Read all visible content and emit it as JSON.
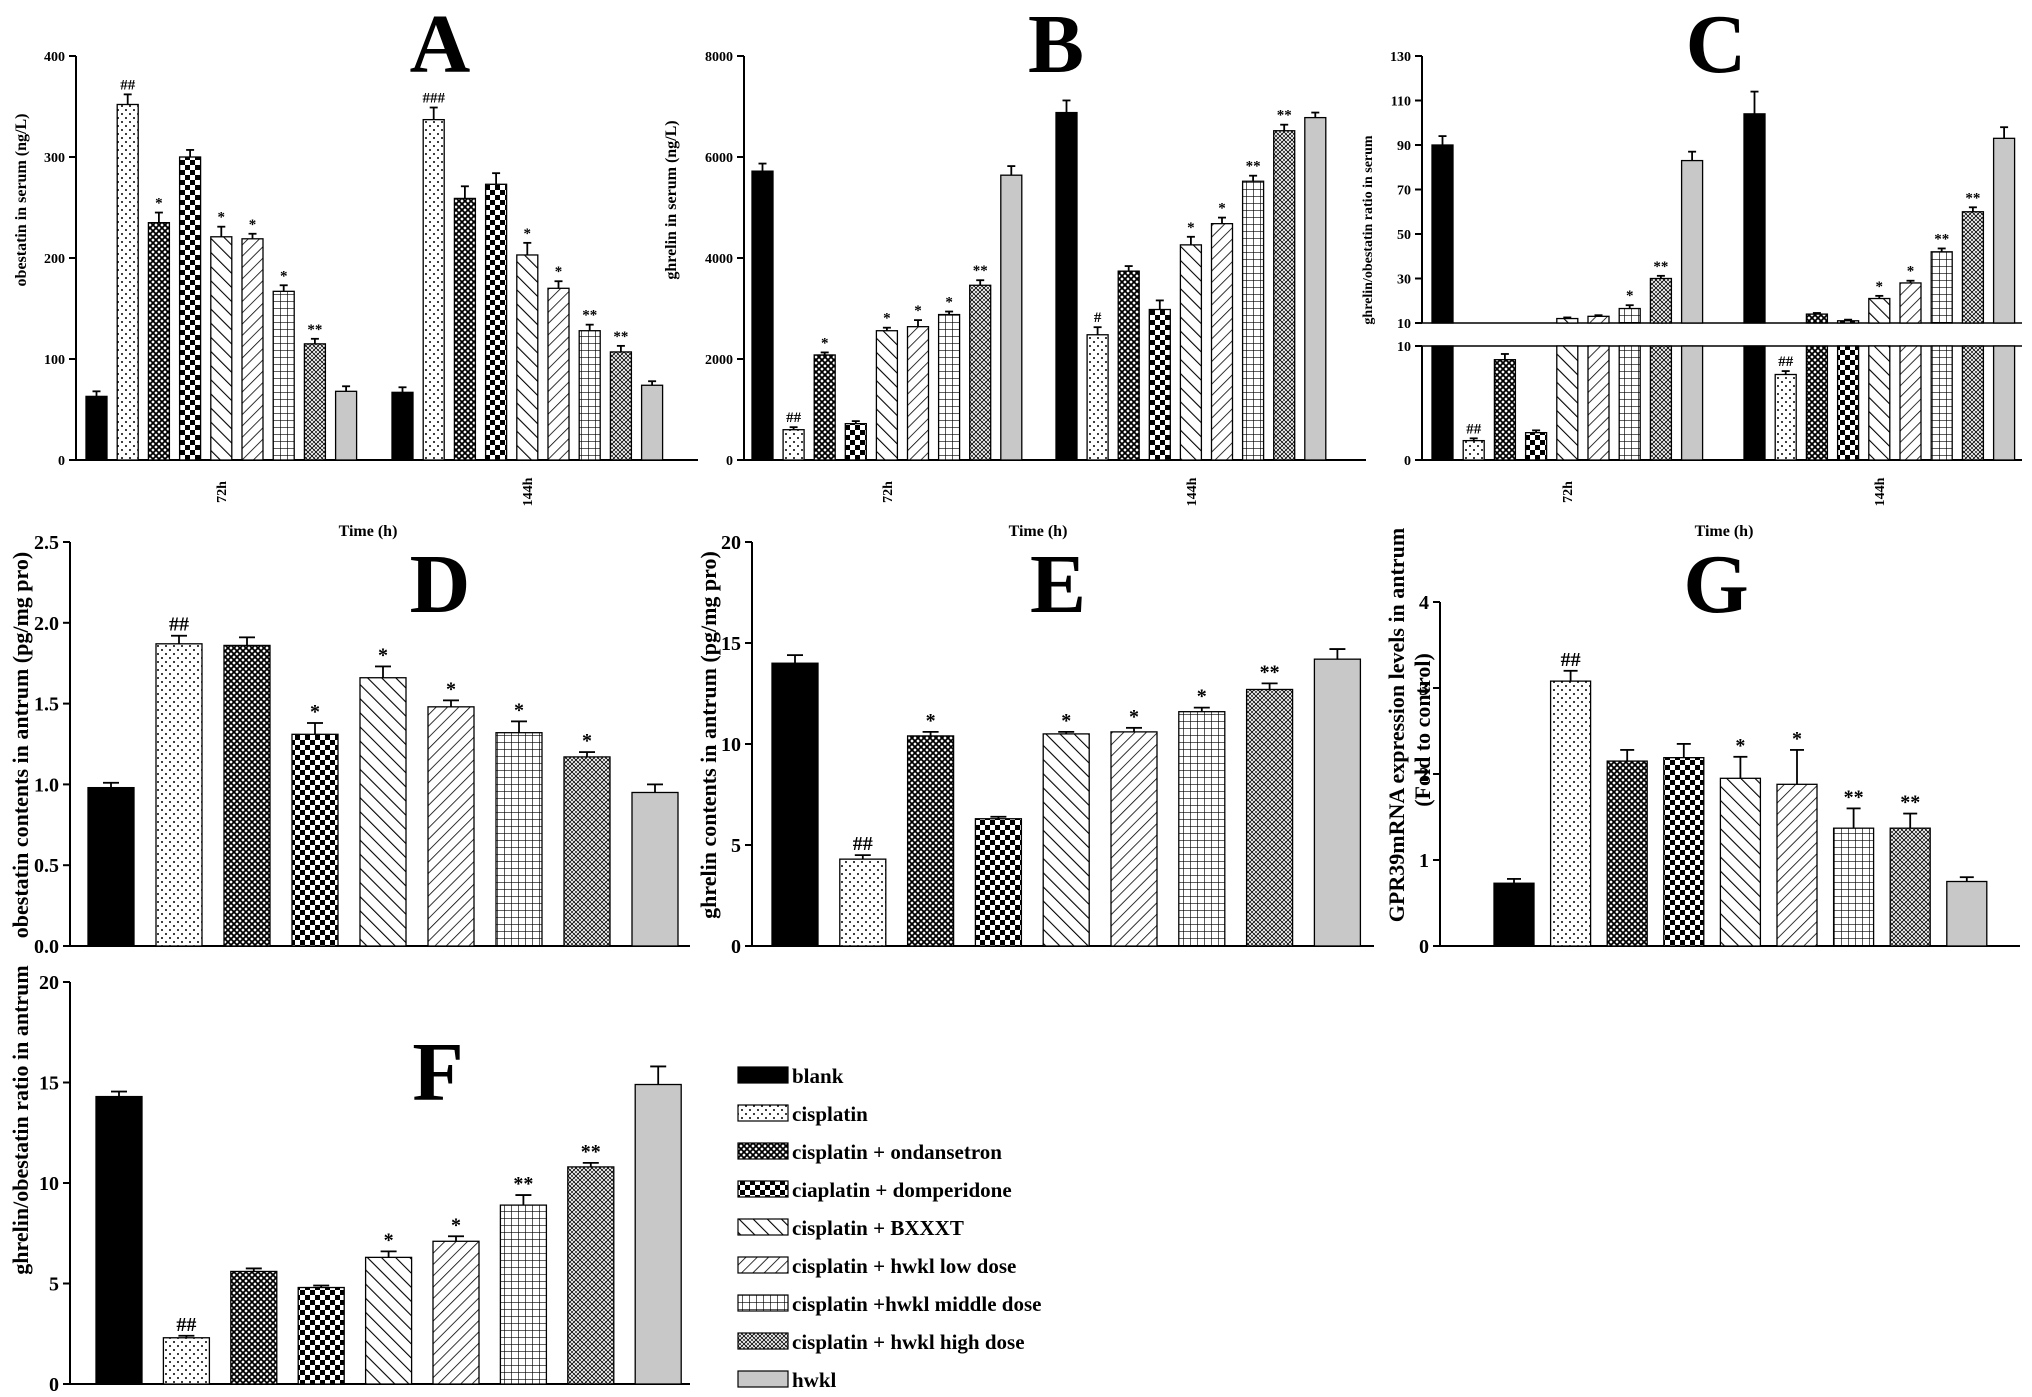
{
  "series_names": [
    "blank",
    "cisplatin",
    "cisplatin + ondansetron",
    "ciaplatin + domperidone",
    "cisplatin + BXXXT",
    "cisplatin + hwkl low dose",
    "cisplatin +hwkl middle dose",
    "cisplatin + hwkl high dose",
    "hwkl"
  ],
  "series_fills": [
    "black",
    "dots",
    "crosshatch",
    "checker",
    "diag-wide",
    "diag-back",
    "grid",
    "diamond",
    "gray"
  ],
  "colors": {
    "ink": "#000000",
    "hwkl_gray": "#c8c8c8",
    "background": "#ffffff"
  },
  "chart_data": [
    {
      "panel": "A",
      "type": "bar",
      "ylabel": "obestatin in serum (ng/L)",
      "xlabel": "Time (h)",
      "categories": [
        "72h",
        "144h"
      ],
      "ylim": [
        0,
        400
      ],
      "yticks": [
        0,
        100,
        200,
        300,
        400
      ],
      "values": [
        [
          63,
          352,
          235,
          300,
          221,
          219,
          167,
          115,
          68
        ],
        [
          67,
          337,
          259,
          273,
          203,
          170,
          128,
          107,
          74
        ]
      ],
      "errors": [
        [
          5,
          10,
          10,
          7,
          10,
          5,
          6,
          5,
          5
        ],
        [
          5,
          12,
          12,
          11,
          12,
          7,
          6,
          6,
          4
        ]
      ],
      "annotations": [
        [
          "",
          "##",
          "*",
          "",
          "*",
          "*",
          "*",
          "**",
          ""
        ],
        [
          "",
          "###",
          "",
          "",
          "*",
          "*",
          "**",
          "**",
          ""
        ]
      ],
      "legend": "bottom-right"
    },
    {
      "panel": "B",
      "type": "bar",
      "ylabel": "ghrelin in serum (ng/L)",
      "xlabel": "Time (h)",
      "categories": [
        "72h",
        "144h"
      ],
      "ylim": [
        0,
        8000
      ],
      "yticks": [
        0,
        2000,
        4000,
        6000,
        8000
      ],
      "values": [
        [
          5720,
          600,
          2080,
          720,
          2560,
          2640,
          2880,
          3460,
          5640
        ],
        [
          6880,
          2480,
          3740,
          2980,
          4260,
          4680,
          5520,
          6520,
          6780
        ]
      ],
      "errors": [
        [
          150,
          50,
          50,
          50,
          60,
          130,
          60,
          100,
          180
        ],
        [
          240,
          150,
          100,
          180,
          160,
          120,
          110,
          120,
          100
        ]
      ],
      "annotations": [
        [
          "",
          "##",
          "*",
          "",
          "*",
          "*",
          "*",
          "**",
          ""
        ],
        [
          "",
          "#",
          "",
          "",
          "*",
          "*",
          "**",
          "**",
          ""
        ]
      ]
    },
    {
      "panel": "C",
      "type": "bar",
      "axis_break": true,
      "ylabel": "ghrelin/obestatin ratio in serum",
      "xlabel": "Time (h)",
      "categories": [
        "72h",
        "144h"
      ],
      "ylim_lower": [
        0,
        10
      ],
      "ylim_upper": [
        10,
        130
      ],
      "yticks_lower": [
        0,
        10
      ],
      "yticks_upper": [
        10,
        30,
        50,
        70,
        90,
        110,
        130
      ],
      "values": [
        [
          90,
          1.7,
          8.8,
          2.4,
          12,
          13,
          16.5,
          30,
          83
        ],
        [
          104,
          7.5,
          14,
          11,
          21,
          28,
          42,
          60,
          93
        ]
      ],
      "errors": [
        [
          4,
          0.2,
          0.5,
          0.2,
          0.5,
          0.5,
          1.5,
          1.2,
          4
        ],
        [
          10,
          0.3,
          0.5,
          0.5,
          1.2,
          1,
          1.5,
          2,
          5
        ]
      ],
      "annotations": [
        [
          "",
          "##",
          "",
          "",
          "",
          "",
          "*",
          "**",
          ""
        ],
        [
          "",
          "##",
          "",
          "",
          "*",
          "*",
          "**",
          "**",
          ""
        ]
      ]
    },
    {
      "panel": "D",
      "type": "bar",
      "ylabel": "obestatin contents in antrum (pg/mg pro)",
      "ylim": [
        0,
        2.5
      ],
      "yticks": [
        "0.0",
        "0.5",
        "1.0",
        "1.5",
        "2.0",
        "2.5"
      ],
      "values": [
        0.98,
        1.87,
        1.86,
        1.31,
        1.66,
        1.48,
        1.32,
        1.17,
        0.95
      ],
      "errors": [
        0.03,
        0.05,
        0.05,
        0.07,
        0.07,
        0.04,
        0.07,
        0.03,
        0.05
      ],
      "annotations": [
        "",
        "##",
        "",
        "*",
        "*",
        "*",
        "*",
        "*",
        ""
      ]
    },
    {
      "panel": "E",
      "type": "bar",
      "ylabel": "ghrelin contents in antrum (pg/mg pro)",
      "ylim": [
        0,
        20
      ],
      "yticks": [
        "0",
        "5",
        "10",
        "15",
        "20"
      ],
      "values": [
        14.0,
        4.3,
        10.4,
        6.3,
        10.5,
        10.6,
        11.6,
        12.7,
        14.2
      ],
      "errors": [
        0.4,
        0.2,
        0.2,
        0.1,
        0.1,
        0.2,
        0.2,
        0.3,
        0.5
      ],
      "annotations": [
        "",
        "##",
        "*",
        "",
        "*",
        "*",
        "*",
        "**",
        ""
      ]
    },
    {
      "panel": "F",
      "type": "bar",
      "ylabel": "ghrelin/obestatin ratio in antrum",
      "ylim": [
        0,
        20
      ],
      "yticks": [
        "0",
        "5",
        "10",
        "15",
        "20"
      ],
      "values": [
        14.3,
        2.3,
        5.6,
        4.8,
        6.3,
        7.1,
        8.9,
        10.8,
        14.9
      ],
      "errors": [
        0.25,
        0.1,
        0.15,
        0.1,
        0.3,
        0.25,
        0.5,
        0.2,
        0.9
      ],
      "annotations": [
        "",
        "##",
        "",
        "",
        "*",
        "*",
        "**",
        "**",
        ""
      ]
    },
    {
      "panel": "G",
      "type": "bar",
      "ylabel": "GPR39mRNA expression levels in antrum",
      "ylabel2": "(Fold to control)",
      "ylim": [
        0,
        4
      ],
      "yticks": [
        "0",
        "1",
        "2",
        "3",
        "4"
      ],
      "values": [
        0.73,
        3.08,
        2.15,
        2.19,
        1.95,
        1.88,
        1.37,
        1.37,
        0.75
      ],
      "errors": [
        0.05,
        0.12,
        0.13,
        0.16,
        0.25,
        0.4,
        0.23,
        0.17,
        0.05
      ],
      "annotations": [
        "",
        "##",
        "",
        "",
        "*",
        "*",
        "**",
        "**",
        ""
      ]
    }
  ]
}
